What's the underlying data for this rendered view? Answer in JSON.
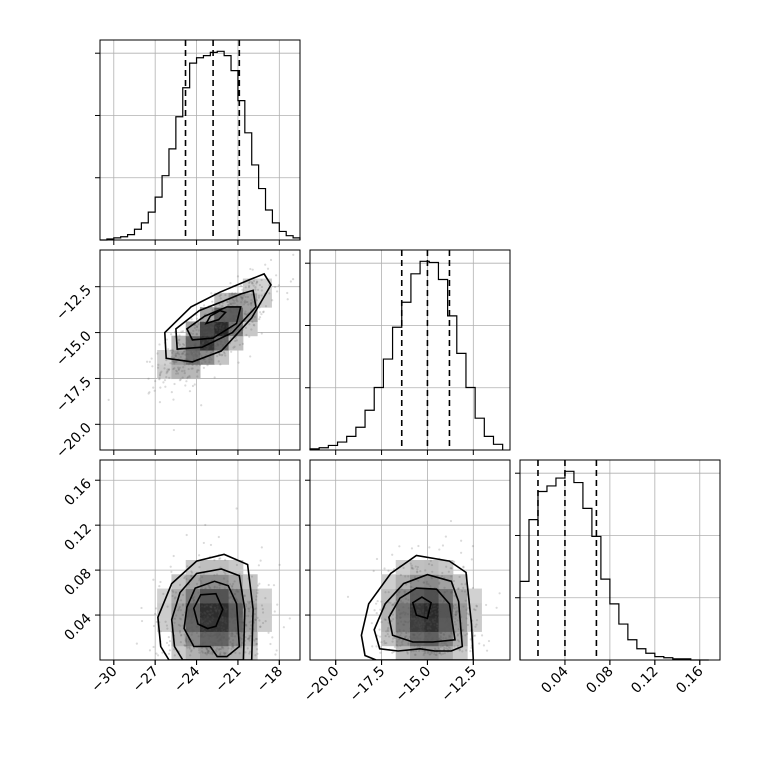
{
  "chart_data": {
    "type": "corner",
    "grid": true,
    "parameters": [
      {
        "range": [
          -31,
          -16.5
        ],
        "ticks": [
          -30,
          -27,
          -24,
          -21,
          -18
        ],
        "tick_labels": [
          "−30",
          "−27",
          "−24",
          "−21",
          "−18"
        ],
        "quantiles": [
          -24.8,
          -22.8,
          -20.9
        ],
        "center": -22.7,
        "sd": 1.9,
        "hist_bins": [
          -31,
          -30.5,
          -30,
          -29.5,
          -29,
          -28.5,
          -28,
          -27.5,
          -27,
          -26.5,
          -26,
          -25.5,
          -25,
          -24.5,
          -24,
          -23.5,
          -23,
          -22.5,
          -22,
          -21.5,
          -21,
          -20.5,
          -20,
          -19.5,
          -19,
          -18.5,
          -18,
          -17.5,
          -17,
          -16.5
        ],
        "hist_counts": [
          0,
          1,
          2,
          3,
          5,
          10,
          16,
          26,
          40,
          60,
          85,
          115,
          142,
          165,
          170,
          172,
          175,
          176,
          172,
          158,
          130,
          100,
          70,
          48,
          28,
          16,
          8,
          4,
          2
        ]
      },
      {
        "range": [
          -21.4,
          -10.5
        ],
        "ticks": [
          -20.0,
          -17.5,
          -15.0,
          -12.5
        ],
        "tick_labels": [
          "−20.0",
          "−17.5",
          "−15.0",
          "−12.5"
        ],
        "quantiles": [
          -16.4,
          -15.0,
          -13.8
        ],
        "center": -15.0,
        "sd": 1.35,
        "hist_bins": [
          -21.4,
          -20.9,
          -20.4,
          -19.9,
          -19.4,
          -18.9,
          -18.4,
          -17.9,
          -17.4,
          -16.9,
          -16.4,
          -15.9,
          -15.4,
          -14.9,
          -14.4,
          -13.9,
          -13.4,
          -12.9,
          -12.4,
          -11.9,
          -11.4,
          -10.9
        ],
        "hist_counts": [
          1,
          2,
          4,
          7,
          12,
          20,
          35,
          55,
          80,
          108,
          130,
          155,
          166,
          165,
          150,
          118,
          85,
          55,
          28,
          12,
          5
        ]
      },
      {
        "range": [
          0,
          0.178
        ],
        "ticks": [
          0.04,
          0.08,
          0.12,
          0.16
        ],
        "tick_labels": [
          "0.04",
          "0.08",
          "0.12",
          "0.16"
        ],
        "quantiles": [
          0.016,
          0.04,
          0.068
        ],
        "center": 0.04,
        "sd": 0.025,
        "hist_bins": [
          0,
          0.008,
          0.016,
          0.024,
          0.032,
          0.04,
          0.048,
          0.056,
          0.064,
          0.072,
          0.08,
          0.088,
          0.096,
          0.104,
          0.112,
          0.12,
          0.128,
          0.136,
          0.144,
          0.152,
          0.16,
          0.168
        ],
        "hist_counts": [
          70,
          125,
          150,
          155,
          162,
          168,
          158,
          135,
          110,
          72,
          50,
          32,
          18,
          10,
          6,
          3,
          2,
          1,
          1,
          0,
          0
        ]
      }
    ],
    "contour_sets": {
      "1_0": [
        [
          [
            -20.1,
            -12.1
          ],
          [
            -19.1,
            -11.8
          ],
          [
            -18.6,
            -12.4
          ],
          [
            -20.0,
            -14.2
          ],
          [
            -22.2,
            -16.0
          ],
          [
            -24.3,
            -16.6
          ],
          [
            -26.2,
            -16.4
          ],
          [
            -26.3,
            -15.0
          ],
          [
            -24.4,
            -13.6
          ],
          [
            -22.3,
            -12.8
          ]
        ],
        [
          [
            -20.8,
            -12.9
          ],
          [
            -19.9,
            -12.7
          ],
          [
            -19.7,
            -13.6
          ],
          [
            -21.4,
            -15.0
          ],
          [
            -23.6,
            -15.8
          ],
          [
            -25.4,
            -15.9
          ],
          [
            -25.5,
            -14.8
          ],
          [
            -23.8,
            -13.8
          ],
          [
            -22.1,
            -13.3
          ]
        ],
        [
          [
            -21.8,
            -13.6
          ],
          [
            -20.8,
            -13.6
          ],
          [
            -21.1,
            -14.5
          ],
          [
            -22.8,
            -15.3
          ],
          [
            -24.3,
            -15.4
          ],
          [
            -24.7,
            -14.8
          ],
          [
            -23.4,
            -14.1
          ]
        ],
        [
          [
            -22.3,
            -13.8
          ],
          [
            -21.9,
            -13.9
          ],
          [
            -22.4,
            -14.3
          ],
          [
            -23.3,
            -14.5
          ],
          [
            -23.0,
            -14.1
          ]
        ]
      ],
      "2_0": [
        [
          [
            -20.0,
            0.0
          ],
          [
            -19.9,
            0.045
          ],
          [
            -20.3,
            0.085
          ],
          [
            -22.0,
            0.094
          ],
          [
            -24.0,
            0.088
          ],
          [
            -25.8,
            0.068
          ],
          [
            -26.8,
            0.038
          ],
          [
            -26.6,
            0.012
          ],
          [
            -26.0,
            0.0
          ]
        ],
        [
          [
            -20.6,
            0.0
          ],
          [
            -20.5,
            0.045
          ],
          [
            -20.9,
            0.075
          ],
          [
            -22.2,
            0.081
          ],
          [
            -24.0,
            0.077
          ],
          [
            -25.2,
            0.06
          ],
          [
            -25.8,
            0.036
          ],
          [
            -25.6,
            0.012
          ],
          [
            -25.0,
            0.0
          ]
        ],
        [
          [
            -20.9,
            0.012
          ],
          [
            -21.1,
            0.05
          ],
          [
            -21.7,
            0.066
          ],
          [
            -22.7,
            0.07
          ],
          [
            -24.1,
            0.064
          ],
          [
            -24.7,
            0.047
          ],
          [
            -24.9,
            0.028
          ],
          [
            -24.2,
            0.012
          ],
          [
            -23.0,
            0.012
          ],
          [
            -22.5,
            0.003
          ],
          [
            -21.8,
            0.003
          ]
        ],
        [
          [
            -22.6,
            0.03
          ],
          [
            -22.1,
            0.045
          ],
          [
            -22.6,
            0.059
          ],
          [
            -23.7,
            0.058
          ],
          [
            -24.2,
            0.046
          ],
          [
            -23.9,
            0.032
          ],
          [
            -23.2,
            0.028
          ]
        ]
      ],
      "2_1": [
        [
          [
            -12.5,
            0.0
          ],
          [
            -12.6,
            0.032
          ],
          [
            -12.9,
            0.078
          ],
          [
            -13.8,
            0.088
          ],
          [
            -15.6,
            0.093
          ],
          [
            -17.0,
            0.077
          ],
          [
            -18.2,
            0.05
          ],
          [
            -18.6,
            0.022
          ],
          [
            -18.4,
            0.004
          ],
          [
            -17.8,
            0.0
          ]
        ],
        [
          [
            -13.1,
            0.012
          ],
          [
            -13.3,
            0.052
          ],
          [
            -13.7,
            0.07
          ],
          [
            -15.0,
            0.076
          ],
          [
            -16.3,
            0.068
          ],
          [
            -17.3,
            0.05
          ],
          [
            -17.9,
            0.027
          ],
          [
            -17.6,
            0.01
          ],
          [
            -16.6,
            0.008
          ],
          [
            -15.4,
            0.01
          ],
          [
            -14.6,
            0.008
          ],
          [
            -13.7,
            0.008
          ]
        ],
        [
          [
            -13.5,
            0.018
          ],
          [
            -13.8,
            0.05
          ],
          [
            -14.5,
            0.063
          ],
          [
            -15.6,
            0.064
          ],
          [
            -16.5,
            0.055
          ],
          [
            -17.1,
            0.038
          ],
          [
            -16.9,
            0.022
          ],
          [
            -15.8,
            0.016
          ],
          [
            -14.7,
            0.016
          ]
        ],
        [
          [
            -15.0,
            0.037
          ],
          [
            -14.8,
            0.051
          ],
          [
            -15.3,
            0.056
          ],
          [
            -15.8,
            0.051
          ],
          [
            -15.6,
            0.04
          ]
        ]
      ]
    },
    "correlations": {
      "1_0": 0.75,
      "2_0": 0.0,
      "2_1": 0.0
    }
  }
}
